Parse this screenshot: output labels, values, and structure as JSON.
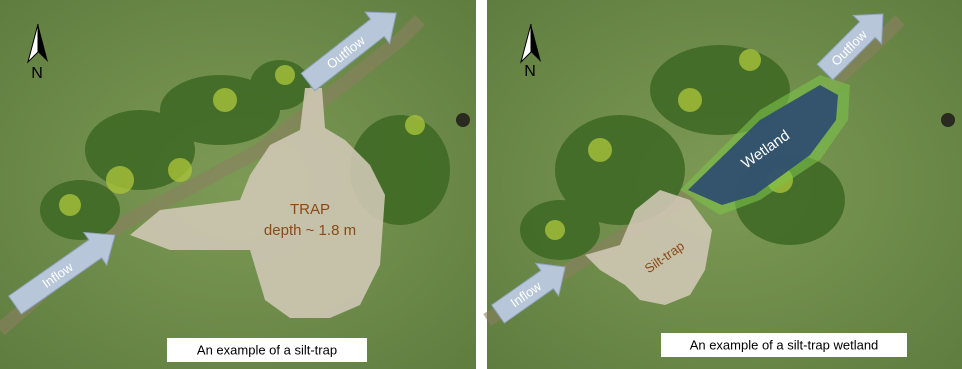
{
  "panels": [
    {
      "north": "N",
      "outflow": "Outflow",
      "inflow": "Inflow",
      "feature_title": "TRAP",
      "feature_detail": "depth ~ 1.8 m",
      "caption": "An example of a silt-trap"
    },
    {
      "north": "N",
      "outflow": "Outflow",
      "inflow": "Inflow",
      "wetland": "Wetland",
      "silt_trap": "Silt-trap",
      "caption": "An example of a silt-trap wetland"
    }
  ]
}
